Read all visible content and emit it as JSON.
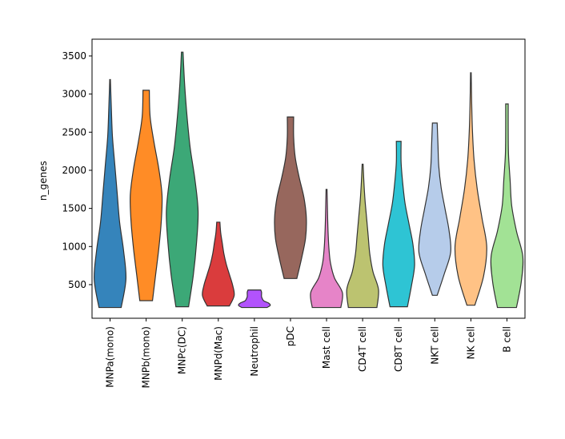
{
  "chart_data": {
    "type": "violin",
    "y_label": "n_genes",
    "categories": [
      "MNPa(mono)",
      "MNPb(mono)",
      "MNPc(DC)",
      "MNPd(Mac)",
      "Neutrophil",
      "pDC",
      "Mast cell",
      "CD4T cell",
      "CD8T cell",
      "NKT cell",
      "NK cell",
      "B cell"
    ],
    "colors": [
      "#1f77b4",
      "#ff7f0e",
      "#279e68",
      "#d62728",
      "#aa40fc",
      "#8c564b",
      "#e377c2",
      "#b5bd61",
      "#17becf",
      "#aec7e8",
      "#ffbb78",
      "#98df8a"
    ],
    "min": [
      200,
      290,
      210,
      220,
      200,
      580,
      200,
      200,
      210,
      360,
      230,
      200
    ],
    "max": [
      3190,
      3050,
      3550,
      1320,
      430,
      2700,
      1750,
      2080,
      2380,
      2620,
      3280,
      2870
    ],
    "widths": [
      [
        0.7,
        1.0,
        0.85,
        0.6,
        0.45,
        0.3,
        0.15,
        0.08,
        0.02
      ],
      [
        0.4,
        0.6,
        0.8,
        0.95,
        1.0,
        0.8,
        0.5,
        0.25,
        0.2
      ],
      [
        0.4,
        0.7,
        0.9,
        1.0,
        0.8,
        0.5,
        0.3,
        0.15,
        0.05
      ],
      [
        0.7,
        1.0,
        0.9,
        0.7,
        0.5,
        0.35,
        0.25,
        0.15,
        0.1
      ],
      [
        0.8,
        1.0,
        0.9,
        0.6,
        0.5,
        0.45,
        0.45,
        0.45,
        0.4
      ],
      [
        0.4,
        0.7,
        0.95,
        1.0,
        0.85,
        0.55,
        0.3,
        0.2,
        0.2
      ],
      [
        0.9,
        1.0,
        0.5,
        0.25,
        0.15,
        0.1,
        0.07,
        0.05,
        0.03
      ],
      [
        0.9,
        1.0,
        0.65,
        0.45,
        0.35,
        0.25,
        0.15,
        0.08,
        0.03
      ],
      [
        0.55,
        0.8,
        1.0,
        0.9,
        0.65,
        0.4,
        0.25,
        0.15,
        0.15
      ],
      [
        0.15,
        0.6,
        1.0,
        0.9,
        0.65,
        0.4,
        0.25,
        0.2,
        0.15
      ],
      [
        0.25,
        0.8,
        1.0,
        0.7,
        0.4,
        0.2,
        0.1,
        0.05,
        0.02
      ],
      [
        0.6,
        0.9,
        1.0,
        0.6,
        0.3,
        0.2,
        0.1,
        0.08,
        0.08
      ]
    ],
    "ylim": [
      59,
      3720
    ],
    "yticks": [
      500,
      1000,
      1500,
      2000,
      2500,
      3000,
      3500
    ]
  }
}
